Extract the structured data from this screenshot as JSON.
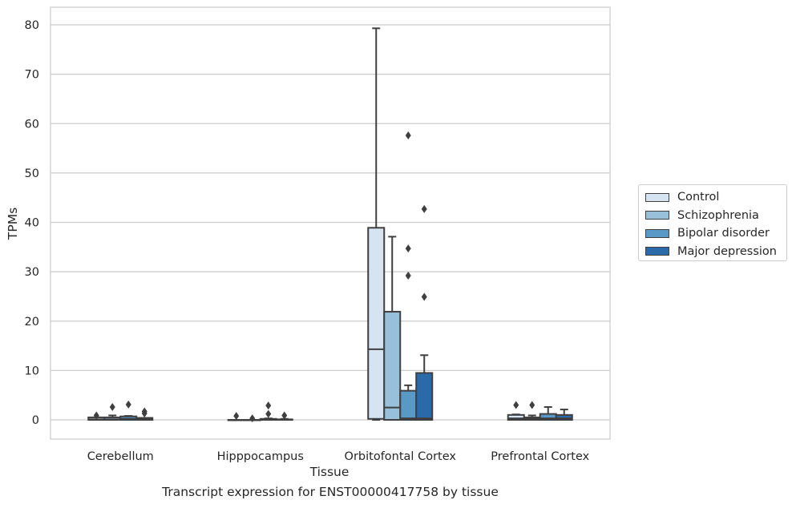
{
  "chart_data": {
    "type": "boxplot",
    "xlabel": "Tissue",
    "ylabel": "TPMs",
    "caption": "Transcript expression for ENST00000417758 by tissue",
    "yticks": [
      0,
      10,
      20,
      30,
      40,
      50,
      60,
      70,
      80
    ],
    "ytick_labels": [
      "0",
      "10",
      "20",
      "30",
      "40",
      "50",
      "60",
      "70",
      "80"
    ],
    "ylim": [
      -4,
      83.5
    ],
    "grid": true,
    "legend_position": "right",
    "categories": [
      "Cerebellum",
      "Hipppocampus",
      "Orbitofontal Cortex",
      "Prefrontal Cortex"
    ],
    "series": [
      {
        "name": "Control",
        "color": "#d6e4f1",
        "boxes": [
          {
            "whislo": 0,
            "q1": 0,
            "med": 0.1,
            "q3": 0.5,
            "whishi": 0.5,
            "fliers": [
              0.9
            ]
          },
          {
            "whislo": 0,
            "q1": 0,
            "med": 0,
            "q3": 0,
            "whishi": 0,
            "fliers": [
              0.8
            ]
          },
          {
            "whislo": 0,
            "q1": 0.2,
            "med": 14.3,
            "q3": 38.9,
            "whishi": 79.3,
            "fliers": []
          },
          {
            "whislo": 0,
            "q1": 0,
            "med": 0.3,
            "q3": 1.0,
            "whishi": 1.1,
            "fliers": [
              3.0
            ]
          }
        ]
      },
      {
        "name": "Schizophrenia",
        "color": "#99c0db",
        "boxes": [
          {
            "whislo": 0,
            "q1": 0,
            "med": 0.1,
            "q3": 0.5,
            "whishi": 0.9,
            "fliers": [
              2.6
            ]
          },
          {
            "whislo": 0,
            "q1": 0,
            "med": 0,
            "q3": 0,
            "whishi": 0,
            "fliers": [
              0.3
            ]
          },
          {
            "whislo": 0,
            "q1": 0,
            "med": 2.5,
            "q3": 21.9,
            "whishi": 37.1,
            "fliers": []
          },
          {
            "whislo": 0,
            "q1": 0,
            "med": 0.2,
            "q3": 0.5,
            "whishi": 0.9,
            "fliers": [
              3.0
            ]
          }
        ]
      },
      {
        "name": "Bipolar disorder",
        "color": "#5999c7",
        "boxes": [
          {
            "whislo": 0,
            "q1": 0,
            "med": 0.2,
            "q3": 0.7,
            "whishi": 0.8,
            "fliers": [
              3.1
            ]
          },
          {
            "whislo": 0,
            "q1": 0,
            "med": 0,
            "q3": 0.2,
            "whishi": 0.3,
            "fliers": [
              1.2,
              2.9
            ]
          },
          {
            "whislo": 0,
            "q1": 0,
            "med": 0.3,
            "q3": 5.9,
            "whishi": 7.0,
            "fliers": [
              29.2,
              34.7,
              57.6
            ]
          },
          {
            "whislo": 0,
            "q1": 0,
            "med": 0.3,
            "q3": 1.2,
            "whishi": 2.6,
            "fliers": []
          }
        ]
      },
      {
        "name": "Major depression",
        "color": "#2b6aa8",
        "boxes": [
          {
            "whislo": 0,
            "q1": 0,
            "med": 0.1,
            "q3": 0.4,
            "whishi": 0.4,
            "fliers": [
              1.3,
              1.7
            ]
          },
          {
            "whislo": 0,
            "q1": 0,
            "med": 0,
            "q3": 0.1,
            "whishi": 0.2,
            "fliers": [
              0.9
            ]
          },
          {
            "whislo": 0,
            "q1": 0,
            "med": 0.3,
            "q3": 9.5,
            "whishi": 13.1,
            "fliers": [
              24.9,
              42.7
            ]
          },
          {
            "whislo": 0,
            "q1": 0,
            "med": 0.3,
            "q3": 1.0,
            "whishi": 2.1,
            "fliers": []
          }
        ]
      }
    ]
  }
}
